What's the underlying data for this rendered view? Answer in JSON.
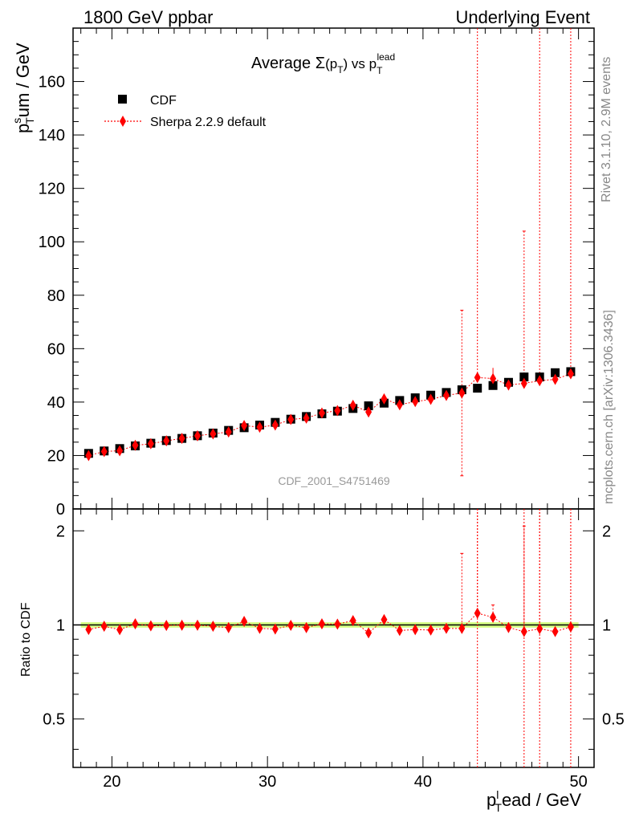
{
  "header": {
    "left": "1800 GeV ppbar",
    "right": "Underlying Event"
  },
  "side": {
    "rivet": "Rivet 3.1.10,  2.9M events",
    "mcplots": "mcplots.cern.ch [arXiv:1306.3436]"
  },
  "chart_data": {
    "type": "scatter",
    "title_parts": {
      "prefix": "Average ",
      "sigma": "Σ",
      "p": "(p",
      "tsub": "T",
      "close": ")",
      "vs": " vs p",
      "tsub2": "T",
      "lead": "lead"
    },
    "ylabel_parts": {
      "p": "p",
      "sup": "s",
      "sub": "T",
      "rest": "um / GeV"
    },
    "xlabel_parts": {
      "p": "p",
      "sup": "l",
      "sub": "T",
      "rest": "ead / GeV"
    },
    "ratio_ylabel": "Ratio to CDF",
    "watermark": "CDF_2001_S4751469",
    "xlim": [
      17.5,
      51
    ],
    "ylim": [
      0,
      180
    ],
    "ratio_ylim": [
      0.35,
      2.35
    ],
    "x_ticks": [
      "20",
      "30",
      "40",
      "50"
    ],
    "y_ticks": [
      "0",
      "20",
      "40",
      "60",
      "80",
      "100",
      "120",
      "140",
      "160"
    ],
    "ratio_ticks": [
      "0.5",
      "1",
      "2"
    ],
    "legend": {
      "placement": "top-left",
      "cdf": "CDF",
      "sherpa": "Sherpa 2.2.9 default"
    },
    "colors": {
      "data": "#000000",
      "mc": "#ff0000",
      "band": "#ccff66"
    },
    "series": [
      {
        "name": "CDF",
        "x": [
          18.5,
          19.5,
          20.5,
          21.5,
          22.5,
          23.5,
          24.5,
          25.5,
          26.5,
          27.5,
          28.5,
          29.5,
          30.5,
          31.5,
          32.5,
          33.5,
          34.5,
          35.5,
          36.5,
          37.5,
          38.5,
          39.5,
          40.5,
          41.5,
          42.5,
          43.5,
          44.5,
          45.5,
          46.5,
          47.5,
          48.5,
          49.5
        ],
        "y": [
          20.8,
          21.7,
          22.6,
          23.6,
          24.6,
          25.6,
          26.4,
          27.4,
          28.4,
          29.4,
          30.4,
          31.4,
          32.4,
          33.6,
          34.6,
          35.6,
          36.6,
          37.6,
          38.6,
          39.6,
          40.6,
          41.6,
          42.6,
          43.6,
          44.6,
          45.2,
          46.2,
          47.4,
          49.4,
          49.4,
          51.0,
          51.4
        ]
      },
      {
        "name": "Sherpa 2.2.9 default",
        "x": [
          18.5,
          19.5,
          20.5,
          21.5,
          22.5,
          23.5,
          24.5,
          25.5,
          26.5,
          27.5,
          28.5,
          29.5,
          30.5,
          31.5,
          32.5,
          33.5,
          34.5,
          35.5,
          36.5,
          37.5,
          38.5,
          39.5,
          40.5,
          41.5,
          42.5,
          43.5,
          44.5,
          45.5,
          46.5,
          47.5,
          48.5,
          49.5
        ],
        "y": [
          20.0,
          21.5,
          21.8,
          23.8,
          24.4,
          25.5,
          26.4,
          27.4,
          28.1,
          28.8,
          31.2,
          30.6,
          31.4,
          33.5,
          34.0,
          35.9,
          36.8,
          38.8,
          36.3,
          41.2,
          39.0,
          40.2,
          41.0,
          42.5,
          43.4,
          49.2,
          48.8,
          46.4,
          47.0,
          48.0,
          48.5,
          50.6
        ],
        "err_low": [
          0.5,
          0.5,
          0.5,
          0.5,
          0.5,
          0.5,
          0.5,
          0.5,
          0.5,
          0.5,
          0.6,
          0.6,
          0.6,
          0.6,
          0.7,
          0.7,
          0.7,
          0.8,
          0.8,
          1.0,
          0.8,
          0.8,
          0.8,
          0.9,
          31.0,
          1.0,
          1.2,
          1.0,
          1.0,
          1.0,
          1.0,
          1.0
        ],
        "err_high": [
          0.5,
          0.5,
          0.5,
          0.5,
          0.5,
          0.5,
          0.5,
          0.5,
          0.5,
          0.5,
          0.6,
          0.6,
          0.6,
          0.6,
          0.7,
          0.7,
          0.7,
          0.8,
          0.8,
          1.0,
          0.8,
          0.8,
          0.8,
          0.9,
          31.0,
          200,
          4.0,
          1.0,
          57.0,
          200,
          1.0,
          200
        ],
        "ratio": [
          0.967,
          0.99,
          0.966,
          1.008,
          0.993,
          0.996,
          0.998,
          0.998,
          0.99,
          0.98,
          1.026,
          0.975,
          0.97,
          0.997,
          0.98,
          1.008,
          1.006,
          1.032,
          0.943,
          1.04,
          0.96,
          0.966,
          0.963,
          0.975,
          0.974,
          1.09,
          1.058,
          0.981,
          0.952,
          0.972,
          0.952,
          0.985
        ],
        "ratio_err_low": [
          0.02,
          0.02,
          0.02,
          0.02,
          0.02,
          0.02,
          0.02,
          0.02,
          0.02,
          0.02,
          0.02,
          0.02,
          0.02,
          0.02,
          0.02,
          0.02,
          0.02,
          0.02,
          0.02,
          0.025,
          0.02,
          0.02,
          0.02,
          0.02,
          0.02,
          0.025,
          0.03,
          0.02,
          0.02,
          0.02,
          0.02,
          0.02
        ],
        "ratio_err_high": [
          0.02,
          0.02,
          0.02,
          0.02,
          0.02,
          0.02,
          0.02,
          0.02,
          0.02,
          0.02,
          0.02,
          0.02,
          0.02,
          0.02,
          0.02,
          0.02,
          0.02,
          0.02,
          0.02,
          0.025,
          0.02,
          0.02,
          0.02,
          0.02,
          0.72,
          2,
          0.1,
          0.02,
          1.12,
          2,
          0.02,
          2
        ]
      }
    ]
  }
}
